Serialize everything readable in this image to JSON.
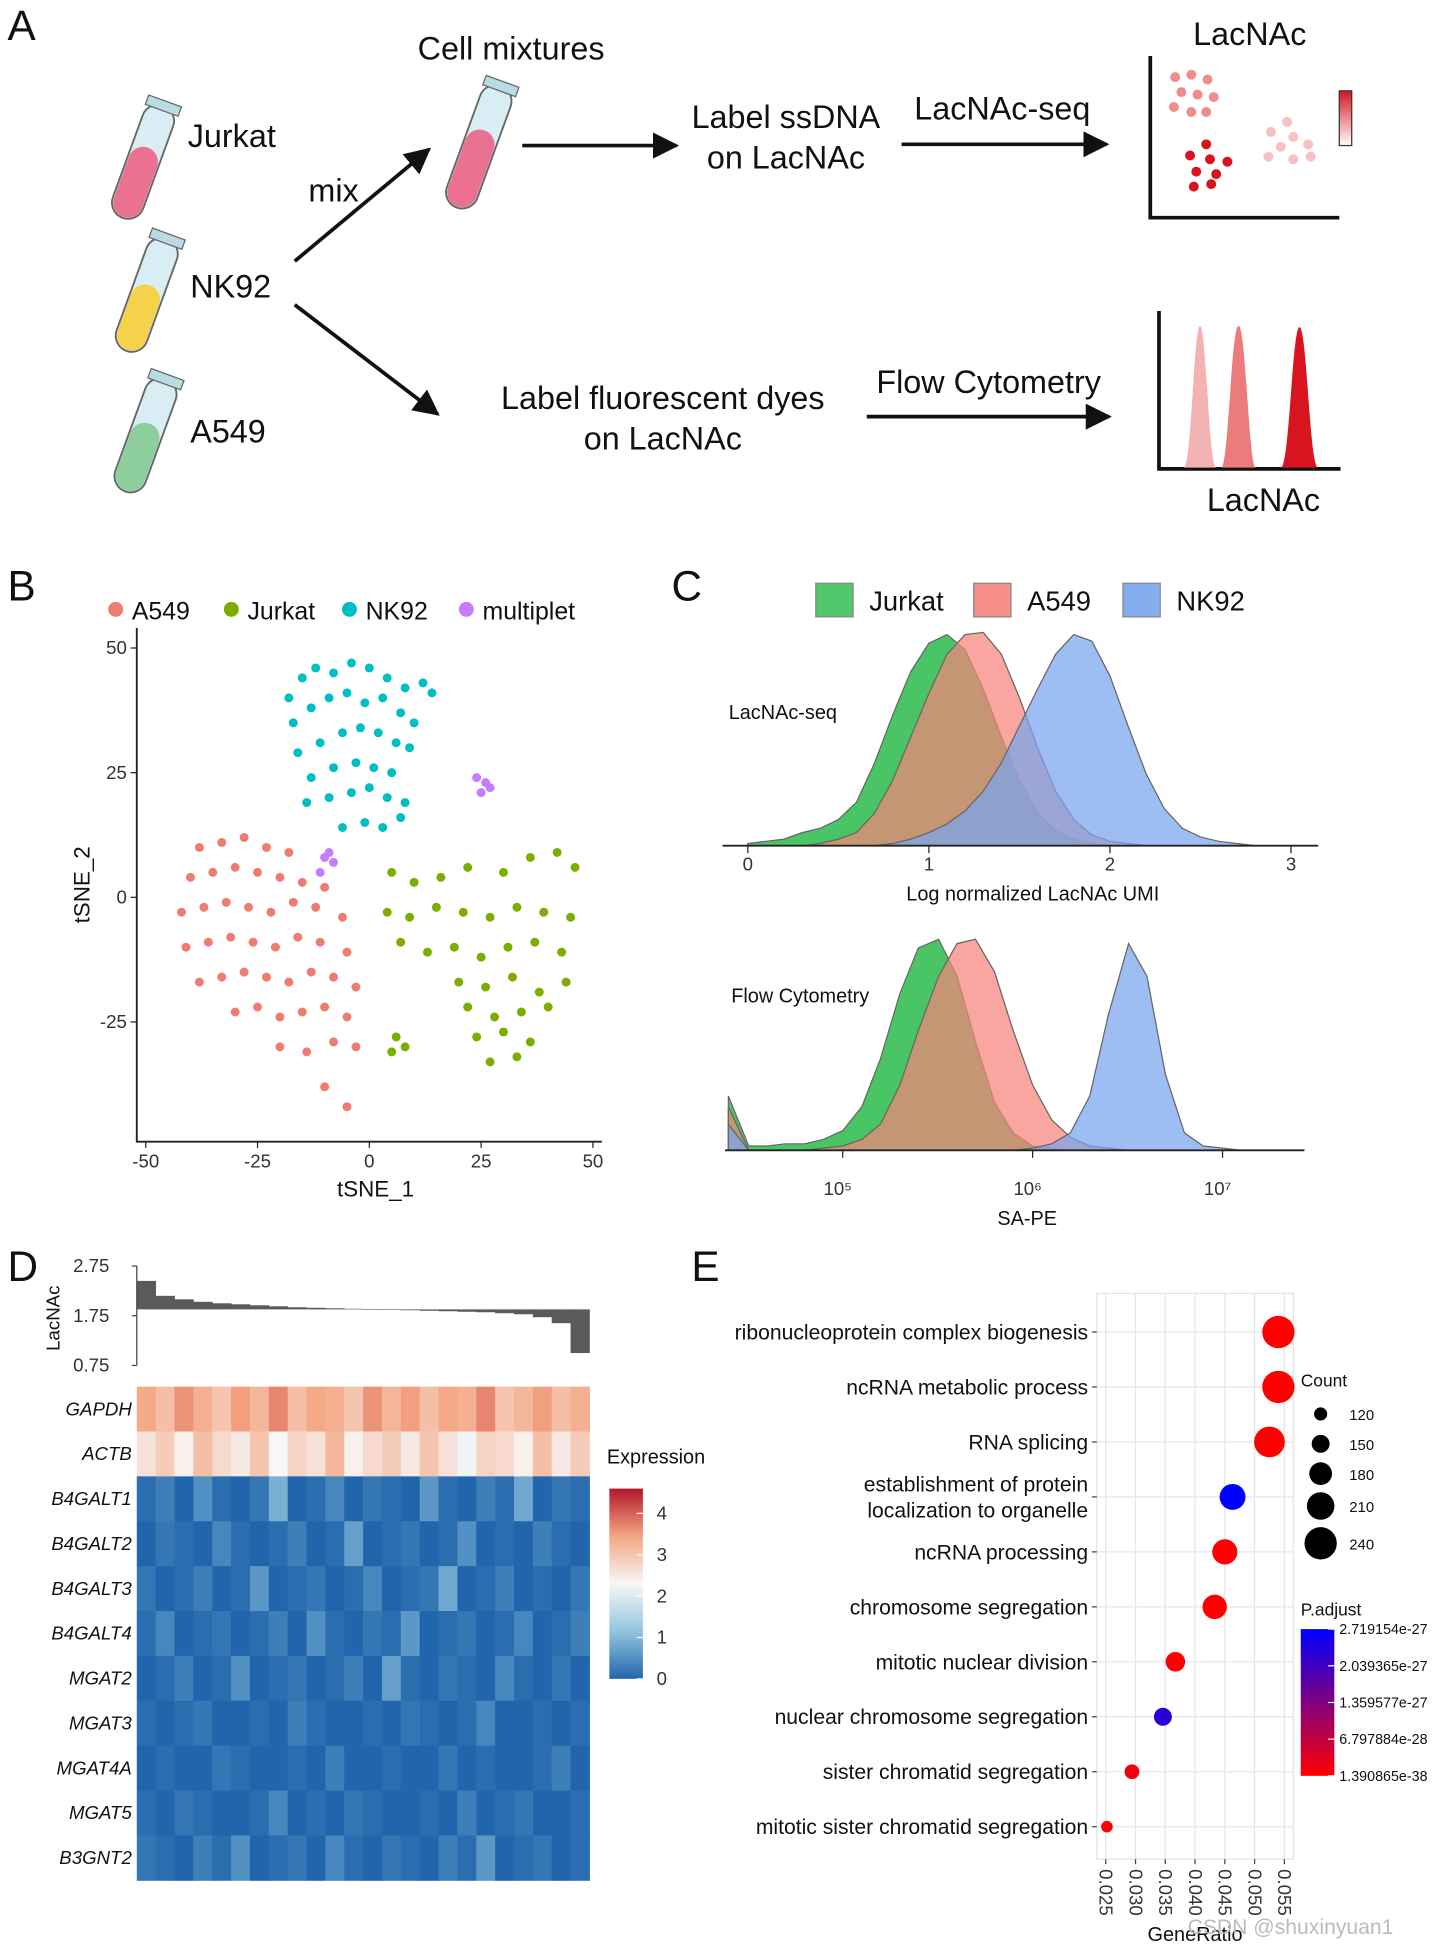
{
  "panel_labels": [
    "A",
    "B",
    "C",
    "D",
    "E"
  ],
  "diagram": {
    "tubes": [
      "Jurkat",
      "NK92",
      "A549"
    ],
    "mix": "mix",
    "mixture": "Cell mixtures",
    "seq_step": "Label ssDNA\non LacNAc",
    "seq_method": "LacNAc-seq",
    "seq_result": "LacNAc",
    "flow_step": "Label fluorescent dyes\non LacNAc",
    "flow_method": "Flow Cytometry",
    "flow_result": "LacNAc"
  },
  "chart_data": [
    {
      "type": "scatter",
      "xlabel": "tSNE_1",
      "ylabel": "tSNE_2",
      "legend": "top",
      "xlim": [
        -52,
        52
      ],
      "xticks": [
        -50,
        -25,
        0,
        25,
        50
      ],
      "ylim": [
        -49,
        54
      ],
      "yticks": [
        -25,
        0,
        25,
        50
      ],
      "series": [
        {
          "name": "A549",
          "color": "#f07c70",
          "x": [
            -38,
            -33,
            -28,
            -23,
            -18,
            -40,
            -35,
            -30,
            -25,
            -20,
            -15,
            -10,
            -42,
            -37,
            -32,
            -27,
            -22,
            -17,
            -12,
            -6,
            -41,
            -36,
            -31,
            -26,
            -21,
            -16,
            -11,
            -5,
            -38,
            -33,
            -28,
            -23,
            -18,
            -13,
            -8,
            -3,
            -30,
            -25,
            -20,
            -15,
            -10,
            -5,
            -20,
            -14,
            -8,
            -3,
            -10,
            -5
          ],
          "y": [
            10,
            11,
            12,
            10,
            9,
            4,
            5,
            6,
            5,
            4,
            3,
            2,
            -3,
            -2,
            -1,
            -2,
            -3,
            -1,
            -2,
            -4,
            -10,
            -9,
            -8,
            -9,
            -10,
            -8,
            -9,
            -11,
            -17,
            -16,
            -15,
            -16,
            -17,
            -15,
            -16,
            -18,
            -23,
            -22,
            -24,
            -23,
            -22,
            -24,
            -30,
            -31,
            -29,
            -30,
            -38,
            -42
          ]
        },
        {
          "name": "Jurkat",
          "color": "#7cae00",
          "x": [
            5,
            10,
            16,
            22,
            30,
            36,
            42,
            46,
            4,
            9,
            15,
            21,
            27,
            33,
            39,
            45,
            7,
            13,
            19,
            25,
            31,
            37,
            43,
            20,
            26,
            32,
            38,
            44,
            22,
            28,
            34,
            40,
            24,
            30,
            36,
            27,
            33,
            6,
            8,
            5
          ],
          "y": [
            5,
            3,
            4,
            6,
            5,
            8,
            9,
            6,
            -3,
            -4,
            -2,
            -3,
            -4,
            -2,
            -3,
            -4,
            -9,
            -11,
            -10,
            -12,
            -10,
            -9,
            -11,
            -17,
            -18,
            -16,
            -19,
            -17,
            -22,
            -24,
            -23,
            -22,
            -28,
            -27,
            -29,
            -33,
            -32,
            -28,
            -30,
            -31
          ]
        },
        {
          "name": "NK92",
          "color": "#00bfc4",
          "x": [
            -18,
            -15,
            -12,
            -8,
            -4,
            0,
            4,
            8,
            12,
            14,
            -17,
            -13,
            -9,
            -5,
            -1,
            3,
            7,
            10,
            -16,
            -11,
            -6,
            -2,
            2,
            6,
            9,
            -13,
            -8,
            -3,
            1,
            5,
            -14,
            -9,
            -4,
            0,
            4,
            8,
            -6,
            -1,
            3,
            7
          ],
          "y": [
            40,
            44,
            46,
            45,
            47,
            46,
            44,
            42,
            43,
            41,
            35,
            38,
            40,
            41,
            39,
            40,
            37,
            35,
            29,
            31,
            33,
            34,
            33,
            31,
            30,
            24,
            26,
            27,
            26,
            25,
            19,
            20,
            21,
            22,
            20,
            19,
            14,
            15,
            14,
            16
          ]
        },
        {
          "name": "multiplet",
          "color": "#c77cff",
          "x": [
            24,
            26,
            27,
            25,
            -10,
            -8,
            -11,
            -9
          ],
          "y": [
            24,
            23,
            22,
            21,
            8,
            7,
            5,
            9
          ]
        }
      ]
    },
    {
      "type": "density",
      "xlabel": "Log normalized LacNAc UMI",
      "annotation": "LacNAc-seq",
      "legend": "top",
      "xlim": [
        -0.14,
        3.15
      ],
      "xticks": [
        0,
        1,
        2,
        3
      ],
      "ylim": [
        0,
        1
      ],
      "x": [
        0,
        0.1,
        0.2,
        0.3,
        0.4,
        0.5,
        0.6,
        0.7,
        0.8,
        0.9,
        1,
        1.1,
        1.2,
        1.3,
        1.4,
        1.5,
        1.6,
        1.7,
        1.8,
        1.9,
        2,
        2.1,
        2.2,
        2.3,
        2.4,
        2.5,
        2.6,
        2.7,
        2.8
      ],
      "series": [
        {
          "name": "Jurkat",
          "color": "#3fc25d",
          "values": [
            0.01,
            0.02,
            0.03,
            0.06,
            0.08,
            0.12,
            0.2,
            0.38,
            0.6,
            0.8,
            0.93,
            0.97,
            0.9,
            0.72,
            0.5,
            0.3,
            0.15,
            0.07,
            0.03,
            0.01,
            0,
            0,
            0,
            0,
            0,
            0,
            0,
            0,
            0
          ]
        },
        {
          "name": "A549",
          "color": "#f5837a",
          "values": [
            0,
            0,
            0,
            0,
            0.01,
            0.03,
            0.06,
            0.15,
            0.3,
            0.5,
            0.7,
            0.88,
            0.97,
            0.98,
            0.88,
            0.68,
            0.45,
            0.25,
            0.12,
            0.05,
            0.02,
            0.01,
            0,
            0,
            0,
            0,
            0,
            0,
            0
          ]
        },
        {
          "name": "NK92",
          "color": "#78a5ee",
          "values": [
            0,
            0,
            0,
            0,
            0,
            0,
            0,
            0,
            0.01,
            0.03,
            0.06,
            0.1,
            0.16,
            0.25,
            0.38,
            0.55,
            0.72,
            0.88,
            0.97,
            0.94,
            0.78,
            0.55,
            0.33,
            0.17,
            0.08,
            0.04,
            0.02,
            0.01,
            0
          ]
        }
      ]
    },
    {
      "type": "density",
      "xlabel": "SA-PE",
      "annotation": "Flow Cytometry",
      "xscale": "log",
      "xlim": [
        24000,
        27000000
      ],
      "xticks": [
        {
          "value": 100000,
          "label": "10⁵"
        },
        {
          "value": 1000000,
          "label": "10⁶"
        },
        {
          "value": 10000000,
          "label": "10⁷"
        }
      ],
      "ylim": [
        0,
        1
      ],
      "x": [
        25000,
        32000,
        40000,
        50000,
        63000,
        79000,
        100000,
        126000,
        158000,
        200000,
        250000,
        320000,
        400000,
        500000,
        630000,
        790000,
        1000000,
        1260000,
        1580000,
        2000000,
        2500000,
        3200000,
        4000000,
        5000000,
        6300000,
        7900000,
        10000000,
        12600000,
        15800000,
        20000000,
        25000000
      ],
      "series": [
        {
          "color": "#3fc25d",
          "values": [
            0.25,
            0.02,
            0.02,
            0.03,
            0.03,
            0.05,
            0.09,
            0.2,
            0.42,
            0.72,
            0.93,
            0.97,
            0.8,
            0.5,
            0.22,
            0.08,
            0.02,
            0.01,
            0,
            0,
            0,
            0,
            0,
            0,
            0,
            0,
            0,
            0,
            0,
            0,
            0
          ]
        },
        {
          "color": "#f5837a",
          "values": [
            0.2,
            0,
            0,
            0,
            0,
            0.01,
            0.02,
            0.05,
            0.12,
            0.3,
            0.55,
            0.8,
            0.95,
            0.97,
            0.82,
            0.55,
            0.3,
            0.14,
            0.06,
            0.02,
            0.01,
            0,
            0,
            0,
            0,
            0,
            0,
            0,
            0,
            0,
            0
          ]
        },
        {
          "color": "#78a5ee",
          "values": [
            0.12,
            0,
            0,
            0,
            0,
            0,
            0,
            0,
            0,
            0,
            0,
            0,
            0,
            0,
            0,
            0,
            0.01,
            0.03,
            0.08,
            0.25,
            0.62,
            0.95,
            0.8,
            0.35,
            0.08,
            0.02,
            0.01,
            0,
            0,
            0,
            0
          ]
        }
      ]
    },
    {
      "type": "bar",
      "ylabel": "LacNAc",
      "color": "#5a5a5a",
      "ylim": [
        0.75,
        2.75
      ],
      "yticks": [
        0.75,
        1.75,
        2.75
      ],
      "values": [
        2.45,
        2.15,
        2.08,
        2.03,
        2.0,
        1.98,
        1.96,
        1.94,
        1.92,
        1.91,
        1.9,
        1.89,
        1.88,
        1.87,
        1.86,
        1.85,
        1.84,
        1.83,
        1.82,
        1.8,
        1.78,
        1.72,
        1.6,
        1.0
      ]
    },
    {
      "type": "heatmap",
      "legend_title": "Expression",
      "row_labels": [
        "GAPDH",
        "ACTB",
        "B4GALT1",
        "B4GALT2",
        "B4GALT3",
        "B4GALT4",
        "MGAT2",
        "MGAT3",
        "MGAT4A",
        "MGAT5",
        "B3GNT2"
      ],
      "clim": [
        0,
        4.6
      ],
      "colorbar_ticks": [
        0,
        1,
        2,
        3,
        4
      ],
      "colorscale": [
        "#2166ac",
        "#92c5de",
        "#f7f7f7",
        "#f4a582",
        "#b2182b"
      ],
      "values": [
        [
          3.4,
          3.1,
          3.6,
          3.3,
          3.0,
          3.5,
          3.2,
          3.7,
          3.1,
          3.4,
          3.3,
          3.0,
          3.6,
          3.2,
          3.5,
          3.1,
          3.4,
          3.3,
          3.7,
          3.0,
          3.2,
          3.5,
          3.1,
          3.3
        ],
        [
          2.6,
          2.9,
          2.4,
          3.1,
          2.7,
          2.5,
          3.0,
          2.3,
          2.8,
          2.6,
          3.2,
          2.4,
          2.7,
          2.9,
          2.5,
          3.0,
          2.6,
          2.2,
          2.8,
          2.7,
          2.4,
          3.1,
          2.5,
          2.9
        ],
        [
          0.1,
          0.3,
          0,
          0.5,
          0.1,
          0,
          0.2,
          0.9,
          0,
          0.1,
          0.4,
          0,
          0.2,
          0.1,
          0,
          0.6,
          0.1,
          0,
          0.3,
          0.1,
          0.8,
          0,
          0.2,
          0.1
        ],
        [
          0,
          0.2,
          0.1,
          0,
          0.4,
          0.1,
          0,
          0.1,
          0.3,
          0,
          0.1,
          0.7,
          0,
          0.1,
          0.2,
          0,
          0.1,
          0.5,
          0,
          0.1,
          0,
          0.3,
          0.1,
          0
        ],
        [
          0.2,
          0,
          0.1,
          0.3,
          0,
          0.1,
          0.6,
          0,
          0.1,
          0.2,
          0,
          0.1,
          0.4,
          0,
          0.1,
          0.2,
          0.8,
          0,
          0.1,
          0.3,
          0,
          0.1,
          0,
          0.2
        ],
        [
          0.1,
          0.4,
          0,
          0.1,
          0.2,
          0,
          0.1,
          0.3,
          0,
          0.5,
          0.1,
          0,
          0.2,
          0.1,
          0.6,
          0,
          0.1,
          0.2,
          0,
          0.1,
          0.4,
          0,
          0.1,
          0.3
        ],
        [
          0,
          0.1,
          0.3,
          0,
          0.1,
          0.5,
          0,
          0.1,
          0.2,
          0,
          0.1,
          0.3,
          0,
          0.7,
          0.1,
          0,
          0.2,
          0.1,
          0,
          0.4,
          0.1,
          0,
          0.2,
          0
        ],
        [
          0.1,
          0,
          0.1,
          0.2,
          0,
          0,
          0.1,
          0,
          0.3,
          0.1,
          0,
          0,
          0.1,
          0,
          0.2,
          0.1,
          0,
          0.1,
          0.4,
          0,
          0,
          0.1,
          0,
          0.1
        ],
        [
          0,
          0.1,
          0,
          0,
          0.2,
          0.1,
          0,
          0,
          0.1,
          0,
          0.3,
          0,
          0,
          0.1,
          0,
          0,
          0.2,
          0,
          0.1,
          0,
          0,
          0.1,
          0.3,
          0
        ],
        [
          0.1,
          0,
          0.2,
          0.1,
          0,
          0,
          0.1,
          0.4,
          0,
          0.1,
          0,
          0.2,
          0.1,
          0,
          0,
          0.1,
          0,
          0.3,
          0,
          0.1,
          0.2,
          0,
          0,
          0.1
        ],
        [
          0.2,
          0.1,
          0,
          0.3,
          0.1,
          0.5,
          0,
          0.1,
          0.2,
          0,
          0.4,
          0.1,
          0,
          0.2,
          0.1,
          0,
          0.3,
          0.1,
          0.6,
          0,
          0.1,
          0.2,
          0,
          0.1
        ]
      ]
    },
    {
      "type": "dot",
      "xlabel": "GeneRatio",
      "grid": true,
      "categories": [
        "ribonucleoprotein complex biogenesis",
        "ncRNA metabolic process",
        "RNA splicing",
        "establishment of protein\nlocalization to organelle",
        "ncRNA processing",
        "chromosome segregation",
        "mitotic nuclear division",
        "nuclear chromosome segregation",
        "sister chromatid segregation",
        "mitotic sister chromatid segregation"
      ],
      "values": [
        0.054,
        0.054,
        0.0525,
        0.0463,
        0.045,
        0.0433,
        0.0367,
        0.0346,
        0.0294,
        0.0252
      ],
      "count": [
        240,
        240,
        230,
        200,
        195,
        190,
        160,
        150,
        130,
        110
      ],
      "p_adjust": [
        3.1e-30,
        2.5e-31,
        5.6e-30,
        2.72e-27,
        1.2e-29,
        4.3e-30,
        8.9e-30,
        2.3e-27,
        1.1e-28,
        2.2e-30
      ],
      "xlim": [
        0.0235,
        0.0565
      ],
      "xticks": [
        0.025,
        {
          "value": 0.03,
          "label": "0.030"
        },
        0.035,
        {
          "value": 0.04,
          "label": "0.040"
        },
        0.045,
        {
          "value": 0.05,
          "label": "0.050"
        },
        0.055
      ],
      "size_legend": {
        "title": "Count",
        "values": [
          120,
          150,
          180,
          210,
          240
        ]
      },
      "color_legend": {
        "title": "P.adjust",
        "colorscale": [
          "#ff0000",
          "#0000ff"
        ],
        "ticks": [
          2.719154e-27,
          2.039365e-27,
          1.359577e-27,
          6.797884e-28,
          1.390865e-38
        ]
      }
    }
  ],
  "watermark": "CSDN @shuxinyuan1"
}
